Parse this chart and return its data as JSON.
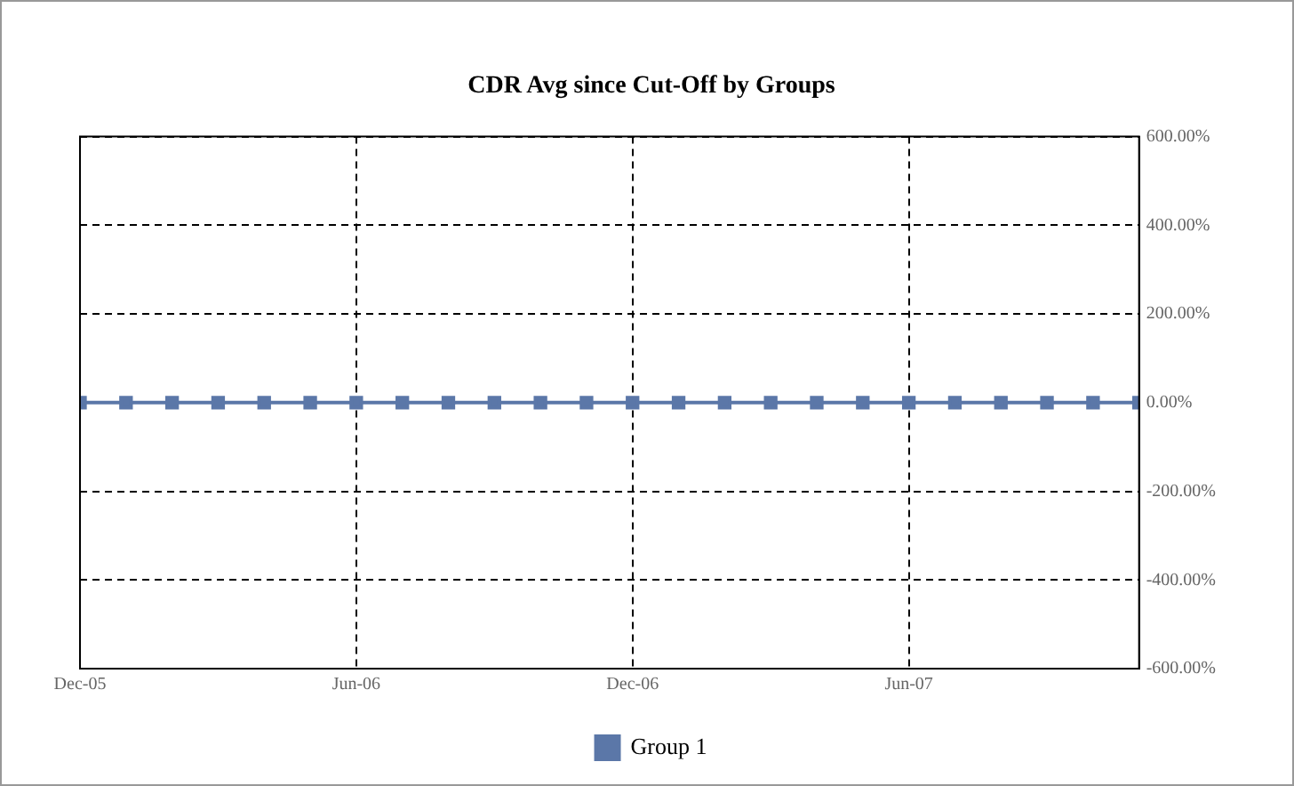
{
  "chart_data": {
    "type": "line",
    "title": "CDR Avg since Cut-Off by Groups",
    "x": [
      "2005-12",
      "2006-01",
      "2006-02",
      "2006-03",
      "2006-04",
      "2006-05",
      "2006-06",
      "2006-07",
      "2006-08",
      "2006-09",
      "2006-10",
      "2006-11",
      "2006-12",
      "2007-01",
      "2007-02",
      "2007-03",
      "2007-04",
      "2007-05",
      "2007-06",
      "2007-07",
      "2007-08",
      "2007-09",
      "2007-10",
      "2007-11"
    ],
    "series": [
      {
        "name": "Group 1",
        "color": "#5b77a8",
        "values": [
          0,
          0,
          0,
          0,
          0,
          0,
          0,
          0,
          0,
          0,
          0,
          0,
          0,
          0,
          0,
          0,
          0,
          0,
          0,
          0,
          0,
          0,
          0,
          0
        ]
      }
    ],
    "xlim": [
      "2005-12",
      "2007-11"
    ],
    "xticks": [
      {
        "value": "2005-12",
        "label": "Dec-05"
      },
      {
        "value": "2006-06",
        "label": "Jun-06"
      },
      {
        "value": "2006-12",
        "label": "Dec-06"
      },
      {
        "value": "2007-06",
        "label": "Jun-07"
      }
    ],
    "ylim": [
      -600,
      600
    ],
    "yticks": [
      {
        "value": -600,
        "label": "-600.00%"
      },
      {
        "value": -400,
        "label": "-400.00%"
      },
      {
        "value": -200,
        "label": "-200.00%"
      },
      {
        "value": 0,
        "label": "0.00%"
      },
      {
        "value": 200,
        "label": "200.00%"
      },
      {
        "value": 400,
        "label": "400.00%"
      },
      {
        "value": 600,
        "label": "600.00%"
      }
    ],
    "grid": true,
    "legend": "bottom",
    "marker": "square",
    "line_style": "solid"
  }
}
